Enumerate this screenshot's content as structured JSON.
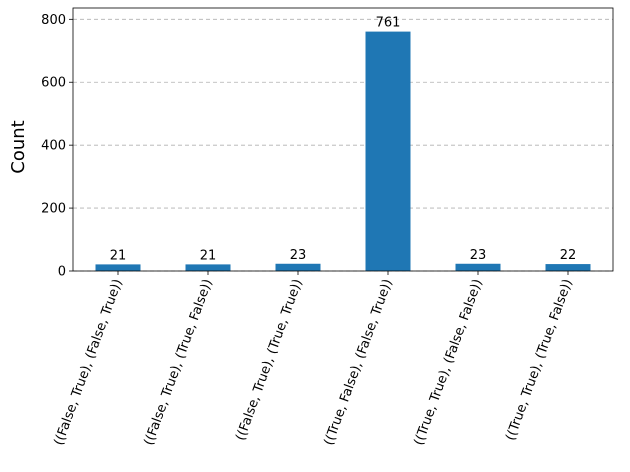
{
  "chart_data": {
    "type": "bar",
    "title": "",
    "xlabel": "",
    "ylabel": "Count",
    "categories": [
      "((False, True), (False, True))",
      "((False, True), (True, False))",
      "((False, True), (True, True))",
      "((True, False), (False, True))",
      "((True, True), (False, False))",
      "((True, True), (True, False))"
    ],
    "values": [
      21,
      21,
      23,
      761,
      23,
      22
    ],
    "data_labels": [
      "21",
      "21",
      "23",
      "761",
      "23",
      "22"
    ],
    "ylim": [
      0,
      836
    ],
    "yticks": [
      0,
      200,
      400,
      600,
      800
    ],
    "ytick_labels": [
      "0",
      "200",
      "400",
      "600",
      "800"
    ],
    "grid": "horizontal dashed",
    "legend": "none",
    "bar_color": "#1f77b4",
    "grid_color": "#b0b0b0"
  }
}
